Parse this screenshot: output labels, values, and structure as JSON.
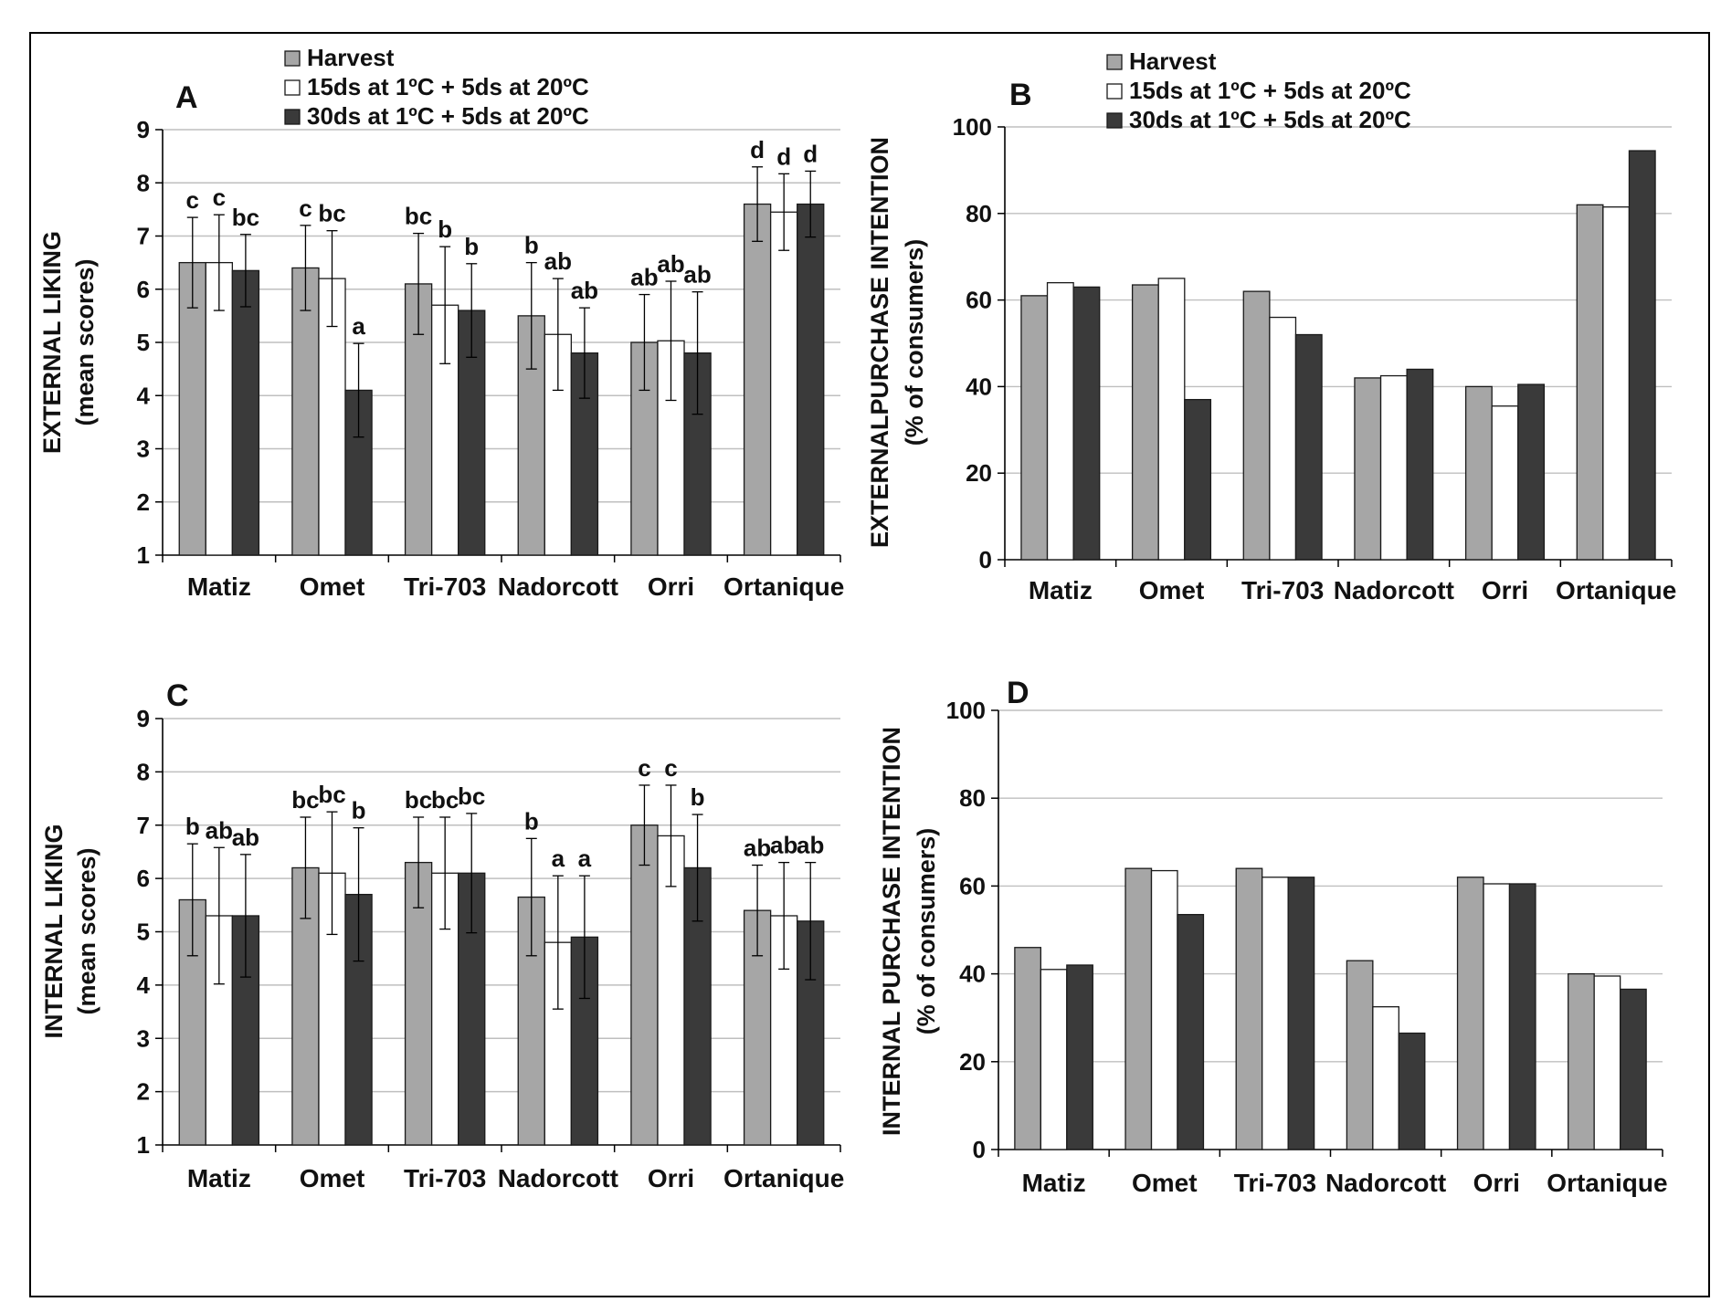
{
  "colors": {
    "Harvest": "#a6a6a6",
    "15ds at 1ºC + 5ds at 20ºC": "#ffffff",
    "30ds at 1ºC + 5ds at 20ºC": "#3a3a3a",
    "axis": "#000000",
    "grid": "#bfbfbf"
  },
  "chart_data": [
    {
      "panel": "A",
      "type": "bar",
      "ylabel": "EXTERNAL LIKING",
      "ylabel2": "(mean scores)",
      "ylim": [
        1,
        9
      ],
      "yticks": [
        1,
        2,
        3,
        4,
        5,
        6,
        7,
        8,
        9
      ],
      "grid": true,
      "legend": "top",
      "legend_entries": [
        "Harvest",
        "15ds at 1ºC + 5ds at 20ºC",
        "30ds at 1ºC + 5ds at 20ºC"
      ],
      "categories": [
        "Matiz",
        "Omet",
        "Tri-703",
        "Nadorcott",
        "Orri",
        "Ortanique"
      ],
      "series": [
        {
          "name": "Harvest",
          "values": [
            6.5,
            6.4,
            6.1,
            5.5,
            5.0,
            7.6
          ],
          "err": [
            0.85,
            0.8,
            0.95,
            1.0,
            0.9,
            0.7
          ],
          "labels": [
            "c",
            "c",
            "bc",
            "b",
            "ab",
            "d"
          ]
        },
        {
          "name": "15ds at 1ºC + 5ds at 20ºC",
          "values": [
            6.5,
            6.2,
            5.7,
            5.15,
            5.03,
            7.45
          ],
          "err": [
            0.9,
            0.9,
            1.1,
            1.05,
            1.12,
            0.72
          ],
          "labels": [
            "c",
            "bc",
            "b",
            "ab",
            "ab",
            "d"
          ]
        },
        {
          "name": "30ds at 1ºC + 5ds at 20ºC",
          "values": [
            6.35,
            4.1,
            5.6,
            4.8,
            4.8,
            7.6
          ],
          "err": [
            0.68,
            0.88,
            0.88,
            0.85,
            1.15,
            0.62
          ],
          "labels": [
            "bc",
            "a",
            "b",
            "ab",
            "ab",
            "d"
          ]
        }
      ]
    },
    {
      "panel": "B",
      "type": "bar",
      "ylabel": "EXTERNALPURCHASE INTENTION",
      "ylabel2": "(% of consumers)",
      "ylim": [
        0,
        100
      ],
      "yticks": [
        0,
        20,
        40,
        60,
        80,
        100
      ],
      "grid": true,
      "legend": "top",
      "legend_entries": [
        "Harvest",
        "15ds at 1ºC + 5ds at 20ºC",
        "30ds at 1ºC + 5ds at 20ºC"
      ],
      "categories": [
        "Matiz",
        "Omet",
        "Tri-703",
        "Nadorcott",
        "Orri",
        "Ortanique"
      ],
      "series": [
        {
          "name": "Harvest",
          "values": [
            61,
            63.5,
            62,
            42,
            40,
            82
          ]
        },
        {
          "name": "15ds at 1ºC + 5ds at 20ºC",
          "values": [
            64,
            65,
            56,
            42.5,
            35.5,
            81.5
          ]
        },
        {
          "name": "30ds at 1ºC + 5ds at 20ºC",
          "values": [
            63,
            37,
            52,
            44,
            40.5,
            94.5
          ]
        }
      ]
    },
    {
      "panel": "C",
      "type": "bar",
      "ylabel": "INTERNAL LIKING",
      "ylabel2": "(mean scores)",
      "ylim": [
        1,
        9
      ],
      "yticks": [
        1,
        2,
        3,
        4,
        5,
        6,
        7,
        8,
        9
      ],
      "grid": true,
      "categories": [
        "Matiz",
        "Omet",
        "Tri-703",
        "Nadorcott",
        "Orri",
        "Ortanique"
      ],
      "series": [
        {
          "name": "Harvest",
          "values": [
            5.6,
            6.2,
            6.3,
            5.65,
            7.0,
            5.4
          ],
          "err": [
            1.05,
            0.95,
            0.85,
            1.1,
            0.75,
            0.85
          ],
          "labels": [
            "b",
            "bc",
            "bc",
            "b",
            "c",
            "ab"
          ]
        },
        {
          "name": "15ds at 1ºC + 5ds at 20ºC",
          "values": [
            5.3,
            6.1,
            6.1,
            4.8,
            6.8,
            5.3
          ],
          "err": [
            1.28,
            1.15,
            1.05,
            1.25,
            0.95,
            1.0
          ],
          "labels": [
            "ab",
            "bc",
            "bc",
            "a",
            "c",
            "ab"
          ]
        },
        {
          "name": "30ds at 1ºC + 5ds at 20ºC",
          "values": [
            5.3,
            5.7,
            6.1,
            4.9,
            6.2,
            5.2
          ],
          "err": [
            1.15,
            1.25,
            1.12,
            1.15,
            1.0,
            1.1
          ],
          "labels": [
            "ab",
            "b",
            "bc",
            "a",
            "b",
            "ab"
          ]
        }
      ]
    },
    {
      "panel": "D",
      "type": "bar",
      "ylabel": "INTERNAL PURCHASE INTENTION",
      "ylabel2": "(% of consumers)",
      "ylim": [
        0,
        100
      ],
      "yticks": [
        0,
        20,
        40,
        60,
        80,
        100
      ],
      "grid": true,
      "categories": [
        "Matiz",
        "Omet",
        "Tri-703",
        "Nadorcott",
        "Orri",
        "Ortanique"
      ],
      "series": [
        {
          "name": "Harvest",
          "values": [
            46,
            64,
            64,
            43,
            62,
            40
          ]
        },
        {
          "name": "15ds at 1ºC + 5ds at 20ºC",
          "values": [
            41,
            63.5,
            62,
            32.5,
            60.5,
            39.5
          ]
        },
        {
          "name": "30ds at 1ºC + 5ds at 20ºC",
          "values": [
            42,
            53.5,
            62,
            26.5,
            60.5,
            36.5
          ]
        }
      ]
    }
  ]
}
